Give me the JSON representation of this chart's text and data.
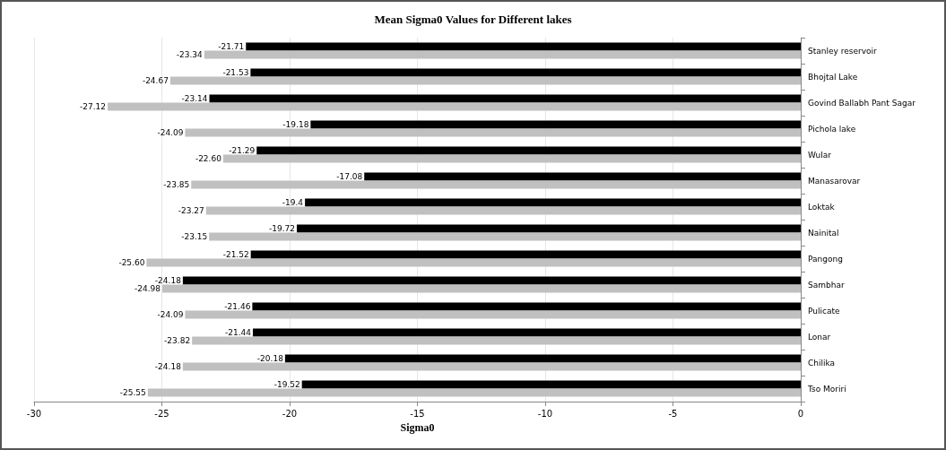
{
  "chart_data": {
    "type": "bar",
    "orientation": "horizontal",
    "title": "Mean Sigma0 Values for Different lakes",
    "xlabel": "Sigma0",
    "categories": [
      "Stanley reservoir",
      "Bhojtal Lake",
      "Govind Ballabh Pant Sagar",
      "Pichola lake",
      "Wular",
      "Manasarovar",
      "Loktak",
      "Nainital",
      "Pangong",
      "Sambhar",
      "Pulicate",
      "Lonar",
      "Chilika",
      "Tso Moriri"
    ],
    "series": [
      {
        "color": "#000000",
        "values": [
          -21.71,
          -21.53,
          -23.14,
          -19.18,
          -21.29,
          -17.08,
          -19.4,
          -19.72,
          -21.52,
          -24.18,
          -21.46,
          -21.44,
          -20.18,
          -19.52
        ],
        "value_labels": [
          "-21.71",
          "-21.53",
          "-23.14",
          "-19.18",
          "-21.29",
          "-17.08",
          "-19.4",
          "-19.72",
          "-21.52",
          "-24.18",
          "-21.46",
          "-21.44",
          "-20.18",
          "-19.52"
        ]
      },
      {
        "color": "#c0c0c0",
        "values": [
          -23.34,
          -24.67,
          -27.12,
          -24.09,
          -22.6,
          -23.85,
          -23.27,
          -23.15,
          -25.6,
          -24.98,
          -24.09,
          -23.82,
          -24.18,
          -25.55
        ],
        "value_labels": [
          "-23.34",
          "-24.67",
          "-27.12",
          "-24.09",
          "-22.60",
          "-23.85",
          "-23.27",
          "-23.15",
          "-25.60",
          "-24.98",
          "-24.09",
          "-23.82",
          "-24.18",
          "-25.55"
        ]
      }
    ],
    "xlim": [
      -30,
      0
    ],
    "xticks": [
      -30,
      -25,
      -20,
      -15,
      -10,
      -5,
      0
    ],
    "grid": "x"
  }
}
